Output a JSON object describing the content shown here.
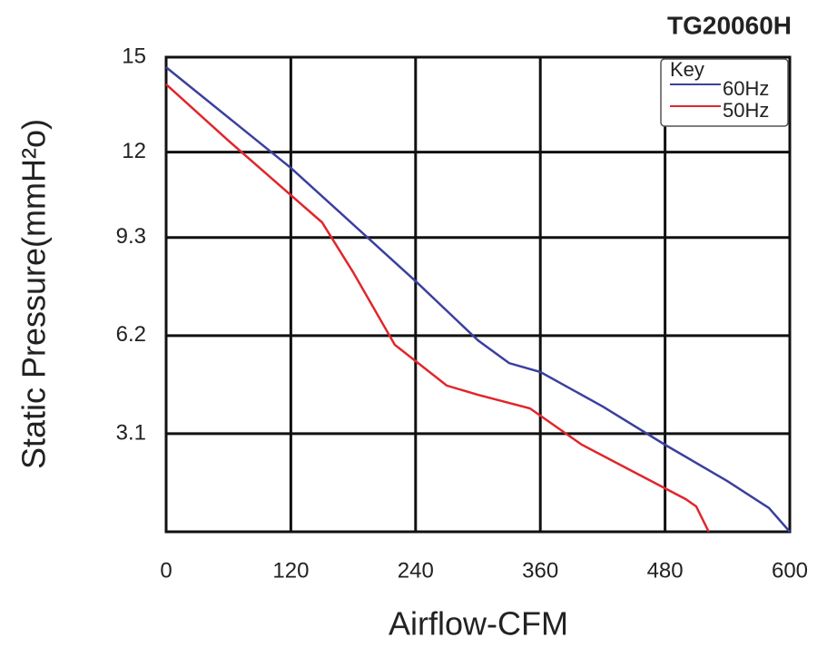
{
  "chart_data": {
    "type": "line",
    "title": "TG20060H",
    "x_label": "Airflow-CFM",
    "y_label": "Static Pressure(mmH²o)",
    "legend_title": "Key",
    "legend": "top-right",
    "grid": true,
    "xlim": [
      0,
      600
    ],
    "xticks": [
      0,
      120,
      240,
      360,
      480,
      600
    ],
    "ylim": [
      0,
      15
    ],
    "yticks": [
      3.1,
      6.2,
      9.3,
      12,
      15
    ],
    "series": [
      {
        "name": "60Hz",
        "color": "#3b3f9e",
        "x": [
          0,
          120,
          240,
          300,
          330,
          360,
          420,
          480,
          540,
          580,
          600
        ],
        "values": [
          14.68,
          11.5,
          7.92,
          6.05,
          5.33,
          5.05,
          3.96,
          2.75,
          1.6,
          0.75,
          0
        ]
      },
      {
        "name": "50Hz",
        "color": "#e0262b",
        "x": [
          0,
          60,
          120,
          150,
          180,
          220,
          270,
          300,
          350,
          400,
          450,
          500,
          510,
          522
        ],
        "values": [
          14.14,
          12.36,
          10.64,
          9.78,
          8.2,
          5.91,
          4.62,
          4.33,
          3.9,
          2.75,
          1.89,
          1.03,
          0.8,
          0
        ]
      }
    ]
  }
}
